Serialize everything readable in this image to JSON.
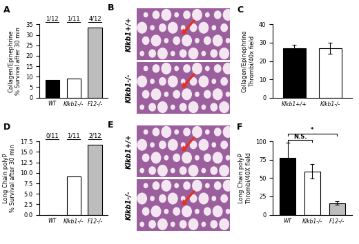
{
  "chart_data": [
    {
      "type": "bar",
      "panel": "A",
      "y_label": "Collagen/Epinephrine\n% Survival after 30 min",
      "categories": [
        "WT",
        "Klkb1-/-",
        "F12-/-"
      ],
      "values": [
        8.33,
        9.09,
        33.33
      ],
      "value_labels": [
        "1/12",
        "1/11",
        "4/12"
      ],
      "data_labels": true,
      "colors": [
        "#000000",
        "#ffffff",
        "#bdbdbd"
      ],
      "ylim": [
        0,
        35
      ],
      "yticks": [
        0,
        5,
        10,
        15,
        20,
        25,
        30,
        35
      ]
    },
    {
      "type": "bar",
      "panel": "C",
      "y_label": "Collagen/Epinephrine\nThrombi/40x field",
      "categories": [
        "Klkb1+/+",
        "Klkb1-/-"
      ],
      "values": [
        27,
        27
      ],
      "errors": [
        2,
        3
      ],
      "colors": [
        "#000000",
        "#ffffff"
      ],
      "ylim": [
        0,
        40
      ],
      "yticks": [
        0,
        10,
        20,
        30,
        40
      ]
    },
    {
      "type": "bar",
      "panel": "D",
      "y_label": "Long Chain polyP\n% Survival after 30 min",
      "categories": [
        "WT",
        "Klkb1-/-",
        "F12-/-"
      ],
      "values": [
        0,
        9.09,
        16.67
      ],
      "value_labels": [
        "0/11",
        "1/11",
        "2/12"
      ],
      "data_labels": true,
      "colors": [
        "#000000",
        "#ffffff",
        "#bdbdbd"
      ],
      "ylim": [
        0,
        17.5
      ],
      "yticks": [
        {
          "value": 0,
          "label": "0.0"
        },
        {
          "value": 2.5,
          "label": "2.5"
        },
        {
          "value": 5,
          "label": "5.0"
        },
        {
          "value": 7.5,
          "label": "7.5"
        },
        {
          "value": 10,
          "label": "10.0"
        },
        {
          "value": 12.5,
          "label": "12.5"
        },
        {
          "value": 15,
          "label": "15.0"
        },
        {
          "value": 17.5,
          "label": "17.5"
        }
      ]
    },
    {
      "type": "bar",
      "panel": "F",
      "y_label": "Long Chain polyP\nThrombi/40X field",
      "categories": [
        "WT",
        "Klkb1-/-",
        "F12-/-"
      ],
      "values": [
        78,
        59,
        16
      ],
      "errors": [
        20,
        10,
        2
      ],
      "colors": [
        "#000000",
        "#ffffff",
        "#bdbdbd"
      ],
      "comparisons": [
        {
          "text": "N.S.",
          "between": [
            0,
            1
          ]
        },
        {
          "text": "*",
          "between": [
            0,
            2
          ]
        }
      ],
      "ylim": [
        0,
        100
      ],
      "yticks": [
        0,
        25,
        50,
        75,
        100
      ]
    }
  ],
  "images": [
    {
      "panel": "B",
      "labels": [
        "Klkb1+/+",
        "Klkb1-/-"
      ]
    },
    {
      "panel": "E",
      "labels": [
        "Klkb1+/+",
        "Klkb1-/-"
      ]
    }
  ]
}
